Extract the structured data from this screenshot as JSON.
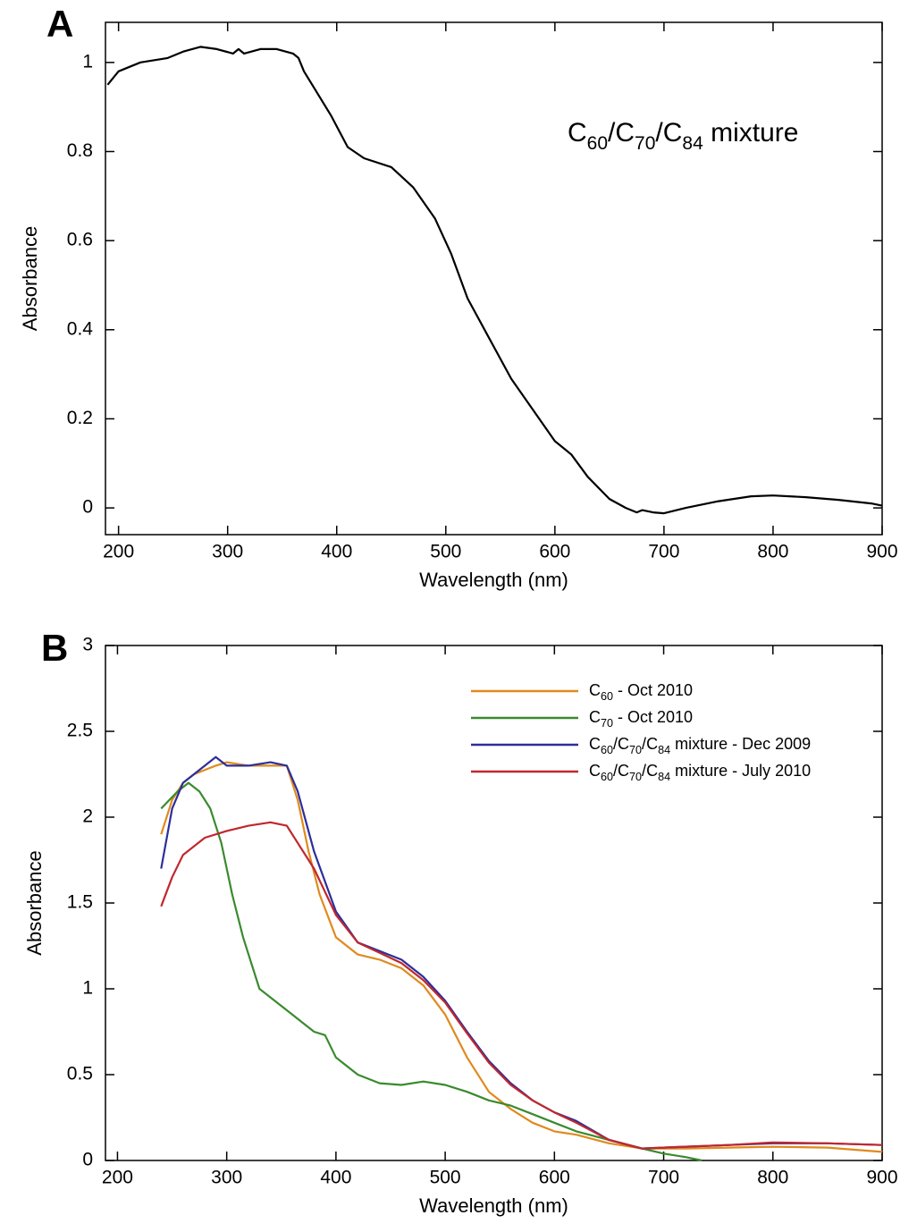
{
  "chart_data": [
    {
      "type": "line",
      "panel_label": "A",
      "xlabel": "Wavelength (nm)",
      "ylabel": "Absorbance",
      "annotation": "C60/C70/C84 mixture",
      "xlim": [
        188,
        900
      ],
      "ylim": [
        -0.06,
        1.09
      ],
      "xticks": [
        200,
        300,
        400,
        500,
        600,
        700,
        800,
        900
      ],
      "yticks": [
        0,
        0.2,
        0.4,
        0.6,
        0.8,
        1
      ],
      "series": [
        {
          "color": "#000000",
          "x": [
            190,
            200,
            220,
            245,
            260,
            275,
            290,
            305,
            310,
            315,
            330,
            345,
            360,
            365,
            370,
            380,
            395,
            410,
            425,
            450,
            470,
            490,
            505,
            520,
            540,
            560,
            580,
            600,
            615,
            630,
            650,
            665,
            675,
            680,
            690,
            700,
            720,
            750,
            780,
            800,
            830,
            860,
            890,
            900
          ],
          "values": [
            0.95,
            0.98,
            1.0,
            1.01,
            1.025,
            1.035,
            1.03,
            1.02,
            1.03,
            1.02,
            1.03,
            1.03,
            1.02,
            1.01,
            0.98,
            0.94,
            0.88,
            0.81,
            0.785,
            0.765,
            0.72,
            0.65,
            0.57,
            0.47,
            0.38,
            0.29,
            0.22,
            0.15,
            0.12,
            0.07,
            0.02,
            0.0,
            -0.01,
            -0.005,
            -0.01,
            -0.012,
            0.0,
            0.015,
            0.026,
            0.028,
            0.024,
            0.018,
            0.01,
            0.005
          ]
        }
      ]
    },
    {
      "type": "line",
      "panel_label": "B",
      "xlabel": "Wavelength (nm)",
      "ylabel": "Absorbance",
      "legend": "upper right",
      "xlim": [
        189,
        900
      ],
      "ylim": [
        0,
        3
      ],
      "xticks": [
        200,
        300,
        400,
        500,
        600,
        700,
        800,
        900
      ],
      "yticks": [
        0,
        0.5,
        1,
        1.5,
        2,
        2.5,
        3
      ],
      "series": [
        {
          "name": "C60 - Oct 2010",
          "color": "#e08a1e",
          "x": [
            240,
            250,
            260,
            270,
            290,
            300,
            320,
            340,
            355,
            365,
            375,
            385,
            400,
            420,
            440,
            460,
            480,
            500,
            520,
            540,
            560,
            580,
            600,
            620,
            650,
            680,
            720,
            760,
            800,
            850,
            900
          ],
          "values": [
            1.9,
            2.1,
            2.2,
            2.25,
            2.3,
            2.32,
            2.3,
            2.3,
            2.3,
            2.1,
            1.8,
            1.55,
            1.3,
            1.2,
            1.17,
            1.12,
            1.02,
            0.85,
            0.6,
            0.4,
            0.3,
            0.22,
            0.17,
            0.15,
            0.1,
            0.07,
            0.07,
            0.075,
            0.08,
            0.075,
            0.05
          ]
        },
        {
          "name": "C70 - Oct 2010",
          "color": "#3a8a2e",
          "x": [
            240,
            255,
            265,
            275,
            285,
            295,
            305,
            315,
            330,
            340,
            360,
            380,
            390,
            400,
            420,
            440,
            460,
            480,
            500,
            520,
            540,
            560,
            580,
            600,
            620,
            650,
            680,
            700,
            720,
            735
          ],
          "values": [
            2.05,
            2.15,
            2.2,
            2.15,
            2.05,
            1.85,
            1.55,
            1.3,
            1.0,
            0.95,
            0.85,
            0.75,
            0.73,
            0.6,
            0.5,
            0.45,
            0.44,
            0.46,
            0.44,
            0.4,
            0.35,
            0.32,
            0.27,
            0.22,
            0.17,
            0.12,
            0.07,
            0.04,
            0.02,
            0.0
          ]
        },
        {
          "name": "C60/C70/C84 mixture - Dec 2009",
          "color": "#2b2f9a",
          "x": [
            240,
            250,
            260,
            280,
            290,
            300,
            320,
            340,
            355,
            365,
            380,
            400,
            420,
            440,
            460,
            480,
            500,
            520,
            540,
            560,
            580,
            600,
            620,
            650,
            680,
            720,
            760,
            800,
            850,
            900
          ],
          "values": [
            1.7,
            2.05,
            2.2,
            2.3,
            2.35,
            2.3,
            2.3,
            2.32,
            2.3,
            2.15,
            1.8,
            1.45,
            1.27,
            1.22,
            1.17,
            1.07,
            0.93,
            0.75,
            0.58,
            0.45,
            0.35,
            0.28,
            0.23,
            0.12,
            0.07,
            0.08,
            0.09,
            0.1,
            0.1,
            0.09
          ]
        },
        {
          "name": "C60/C70/C84 mixture - July 2010",
          "color": "#c0272d",
          "x": [
            240,
            250,
            260,
            280,
            300,
            320,
            340,
            355,
            365,
            380,
            400,
            420,
            440,
            460,
            480,
            500,
            520,
            540,
            560,
            580,
            600,
            620,
            650,
            680,
            720,
            760,
            800,
            850,
            900
          ],
          "values": [
            1.48,
            1.65,
            1.78,
            1.88,
            1.92,
            1.95,
            1.97,
            1.95,
            1.85,
            1.7,
            1.43,
            1.27,
            1.21,
            1.15,
            1.05,
            0.92,
            0.74,
            0.57,
            0.44,
            0.35,
            0.28,
            0.22,
            0.12,
            0.07,
            0.08,
            0.09,
            0.105,
            0.1,
            0.09
          ]
        }
      ]
    }
  ]
}
